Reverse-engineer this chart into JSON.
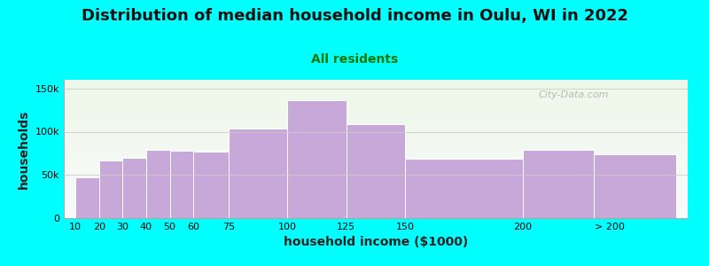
{
  "title": "Distribution of median household income in Oulu, WI in 2022",
  "subtitle": "All residents",
  "xlabel": "household income ($1000)",
  "ylabel": "households",
  "background_color": "#00FFFF",
  "bar_color": "#C8A8D8",
  "bar_edge_color": "#FFFFFF",
  "categories": [
    "10",
    "20",
    "30",
    "40",
    "50",
    "60",
    "75",
    "100",
    "125",
    "150",
    "200",
    "> 200"
  ],
  "values": [
    47000,
    67000,
    70000,
    79000,
    78000,
    77000,
    104000,
    136000,
    109000,
    69000,
    79000,
    74000
  ],
  "bar_lefts": [
    10,
    20,
    30,
    40,
    50,
    60,
    75,
    100,
    125,
    150,
    200,
    230
  ],
  "bar_widths": [
    10,
    10,
    10,
    10,
    10,
    15,
    25,
    25,
    25,
    50,
    30,
    35
  ],
  "xtick_pos": [
    10,
    20,
    30,
    40,
    50,
    60,
    75,
    100,
    125,
    150,
    200,
    237
  ],
  "yticks": [
    0,
    50000,
    100000,
    150000
  ],
  "ytick_labels": [
    "0",
    "50k",
    "100k",
    "150k"
  ],
  "ylim": [
    0,
    160000
  ],
  "xlim": [
    5,
    270
  ],
  "title_fontsize": 13,
  "subtitle_fontsize": 10,
  "subtitle_color": "#007700",
  "axis_label_fontsize": 10,
  "watermark_text": "City-Data.com",
  "plot_bg_top": "#eef8e8",
  "plot_bg_bottom": "#f8fafc"
}
